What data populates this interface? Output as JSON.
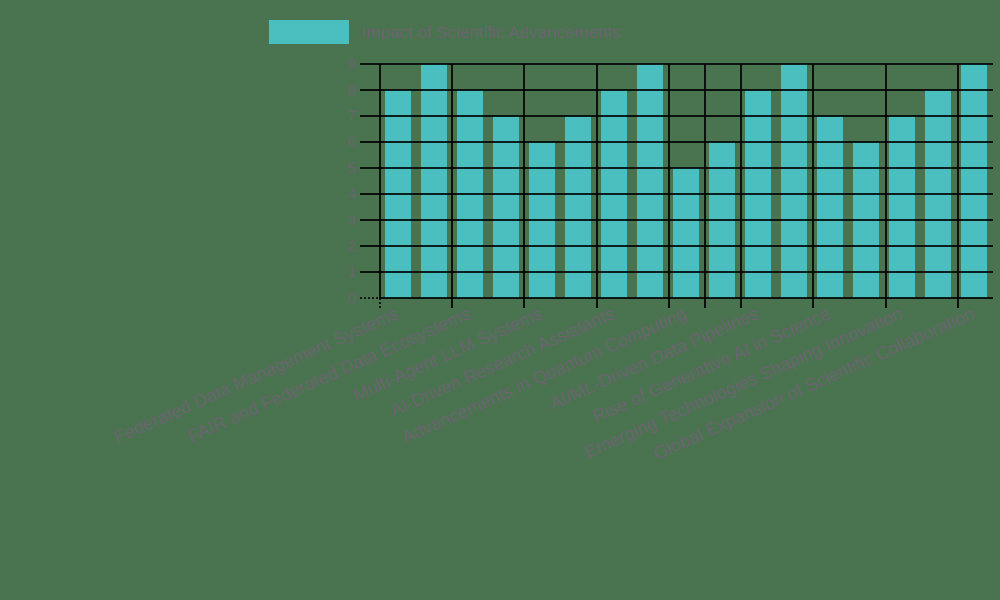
{
  "colors": {
    "background": "#4a7350",
    "bar": "#4bbfbf",
    "text": "#6b6470",
    "grid": "#000000"
  },
  "legend": {
    "label": "Impact of Scientific Advancements"
  },
  "chart_data": {
    "type": "bar",
    "title": "",
    "xlabel": "",
    "ylabel": "",
    "ylim": [
      0,
      9
    ],
    "yticks": [
      0,
      1,
      2,
      3,
      4,
      5,
      6,
      7,
      8,
      9
    ],
    "grid": true,
    "legend_position": "top",
    "series": [
      {
        "name": "Impact of Scientific Advancements",
        "values": [
          8,
          9,
          8,
          7,
          6,
          7,
          8,
          9,
          5,
          6,
          8,
          9,
          7,
          6,
          7,
          8,
          9
        ]
      }
    ],
    "tick_labels": [
      "Federated Data Management Systems",
      "FAIR and Federated Data Ecosystems",
      "Multi-Agent LLM Systems",
      "AI-Driven Research Assistants",
      "Advancements in Quantum Computing",
      "AI/ML-Driven Data Pipelines",
      "Rise of Generative AI in Science",
      "Emerging Technologies Shaping Innovation",
      "Global Expansion of Scientific Collaboration"
    ],
    "tick_label_bar_indices": [
      0,
      2,
      4,
      6,
      8,
      10,
      12,
      14,
      16
    ]
  }
}
